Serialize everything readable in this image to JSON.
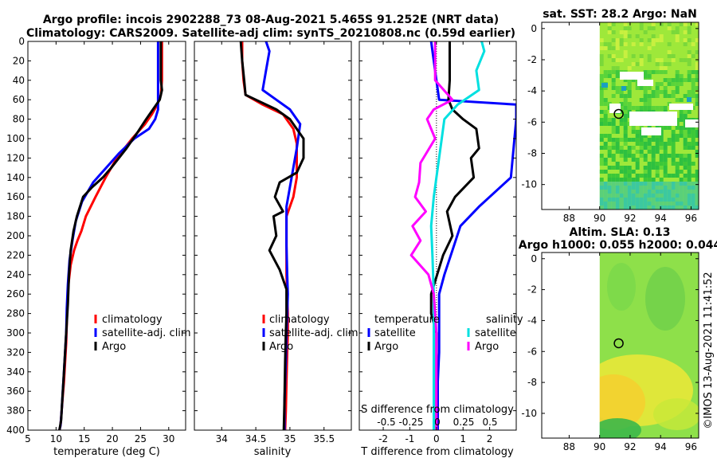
{
  "header": {
    "line1": "Argo profile: incois 2902288_73 08-Aug-2021 5.465S 91.252E (NRT data)",
    "line2": "Climatology: CARS2009. Satellite-adj clim: synTS_20210808.nc (0.59d earlier)"
  },
  "colors": {
    "climatology": "#ff0000",
    "satellite": "#0000ff",
    "argo": "#000000",
    "sat_salinity": "#00e0e0",
    "argo_salinity": "#ff00ff"
  },
  "footer": {
    "stamp": "©IMOS 13-Aug-2021 11:41:52"
  },
  "chart_data": [
    {
      "type": "line",
      "id": "temperature",
      "xlabel": "temperature (deg C)",
      "ylabel": "",
      "xlim": [
        5,
        33
      ],
      "ylim": [
        400,
        0
      ],
      "xticks": [
        5,
        10,
        15,
        20,
        25,
        30
      ],
      "yticks": [
        0,
        20,
        40,
        60,
        80,
        100,
        120,
        140,
        160,
        180,
        200,
        220,
        240,
        260,
        280,
        300,
        320,
        340,
        360,
        380,
        400
      ],
      "legend": [
        "climatology",
        "satellite-adj. clim",
        "Argo"
      ],
      "series": [
        {
          "name": "climatology",
          "color": "#ff0000",
          "x": [
            28.8,
            28.8,
            28.8,
            28.6,
            28,
            27,
            25.8,
            23.5,
            20.8,
            18.8,
            17,
            15.3,
            14.5,
            13.8,
            13.2,
            12.6,
            12.2,
            12.0,
            11.9,
            11.8,
            11.6,
            11.4,
            11.2,
            11.0,
            10.8,
            10.6
          ],
          "y": [
            0,
            20,
            40,
            55,
            65,
            75,
            85,
            100,
            120,
            140,
            160,
            180,
            195,
            205,
            215,
            230,
            250,
            270,
            290,
            310,
            330,
            350,
            365,
            380,
            395,
            400
          ]
        },
        {
          "name": "satellite-adj. clim",
          "color": "#0000ff",
          "x": [
            28.1,
            28.1,
            28.1,
            28.1,
            28.1,
            27.6,
            26.5,
            23.9,
            21.2,
            18.9,
            16.6,
            14.6,
            13.5,
            12.9,
            12.4,
            12.1,
            11.9,
            11.8,
            11.6,
            11.4,
            11.2,
            11.0,
            10.8,
            10.6
          ],
          "y": [
            0,
            20,
            40,
            60,
            70,
            80,
            90,
            100,
            115,
            130,
            145,
            165,
            185,
            205,
            225,
            250,
            275,
            300,
            320,
            340,
            360,
            380,
            395,
            400
          ]
        },
        {
          "name": "Argo",
          "color": "#000000",
          "x": [
            28.6,
            28.6,
            28.6,
            28.8,
            28.4,
            27.2,
            26,
            24.3,
            22.5,
            19.8,
            18.3,
            16.4,
            14.8,
            13.7,
            13.1,
            12.6,
            12.3,
            12.1,
            11.9,
            11.7,
            11.5,
            11.3,
            11.1,
            10.9,
            10.6
          ],
          "y": [
            0,
            20,
            40,
            50,
            60,
            70,
            80,
            95,
            110,
            130,
            140,
            150,
            160,
            180,
            195,
            215,
            240,
            270,
            290,
            310,
            330,
            350,
            370,
            390,
            400
          ]
        }
      ]
    },
    {
      "type": "line",
      "id": "salinity",
      "xlabel": "salinity",
      "xlim": [
        33.6,
        35.9
      ],
      "ylim": [
        400,
        0
      ],
      "xticks": [
        34,
        34.5,
        35,
        35.5
      ],
      "legend": [
        "climatology",
        "satellite-adj. clim",
        "Argo"
      ],
      "series": [
        {
          "name": "climatology",
          "color": "#ff0000",
          "x": [
            34.3,
            34.3,
            34.32,
            34.35,
            34.6,
            34.9,
            35.05,
            35.1,
            35.1,
            35.1,
            35.05,
            34.95,
            34.95,
            34.95,
            34.95,
            34.96,
            34.97,
            34.97,
            34.96,
            34.95,
            34.94,
            34.93
          ],
          "y": [
            0,
            20,
            40,
            55,
            65,
            75,
            90,
            105,
            120,
            140,
            160,
            180,
            200,
            220,
            240,
            260,
            280,
            300,
            320,
            350,
            380,
            400
          ]
        },
        {
          "name": "satellite-adj. clim",
          "color": "#0000ff",
          "x": [
            34.65,
            34.7,
            34.65,
            34.6,
            34.8,
            35.0,
            35.15,
            35.1,
            35.05,
            35.0,
            34.95,
            34.95,
            34.95,
            34.96,
            34.97,
            34.96,
            34.95,
            34.94,
            34.92,
            34.92
          ],
          "y": [
            0,
            10,
            30,
            50,
            60,
            70,
            85,
            110,
            130,
            150,
            170,
            190,
            210,
            240,
            260,
            280,
            300,
            330,
            370,
            400
          ]
        },
        {
          "name": "Argo",
          "color": "#000000",
          "x": [
            34.28,
            34.3,
            34.33,
            34.35,
            34.5,
            34.8,
            35.0,
            35.2,
            35.2,
            35.1,
            34.85,
            34.78,
            34.9,
            34.76,
            34.8,
            34.7,
            34.85,
            34.95,
            34.95,
            34.94,
            34.93,
            34.92,
            34.91
          ],
          "y": [
            0,
            20,
            40,
            55,
            60,
            70,
            80,
            100,
            120,
            135,
            145,
            160,
            175,
            180,
            200,
            215,
            235,
            255,
            280,
            300,
            330,
            370,
            400
          ]
        }
      ]
    },
    {
      "type": "line",
      "id": "difference",
      "xlabel": "T difference from climatology",
      "xlabel_top": "S difference from climatology",
      "xlim": [
        -2.9,
        3.0
      ],
      "ylim": [
        400,
        0
      ],
      "xticks": [
        -2,
        -1,
        0,
        1,
        2
      ],
      "s_ticks": [
        "-0.5",
        "-0.25",
        "0",
        "0.25",
        "0.5"
      ],
      "legend_temperature_title": "temperature",
      "legend_salinity_title": "salinity",
      "legend_t": [
        "satellite",
        "Argo"
      ],
      "legend_s": [
        "satellite",
        "Argo"
      ],
      "series": [
        {
          "name": "T satellite",
          "color": "#0000ff",
          "x": [
            -0.2,
            -0.1,
            0,
            0.1,
            3.0,
            3.0,
            2.8,
            1.6,
            0.9,
            0.6,
            0.3,
            0.1,
            0.1,
            0.1,
            0.05,
            0.05,
            0.05,
            0.05
          ],
          "y": [
            0,
            20,
            40,
            60,
            65,
            80,
            140,
            170,
            190,
            215,
            240,
            260,
            290,
            320,
            350,
            370,
            390,
            400
          ]
        },
        {
          "name": "T Argo",
          "color": "#000000",
          "x": [
            0.5,
            0.5,
            0.5,
            0.45,
            0.6,
            1.0,
            1.5,
            1.6,
            1.3,
            1.4,
            0.7,
            0.4,
            0.6,
            0.25,
            -0.2,
            -0.2,
            0.0,
            0.0,
            0.0,
            0.0
          ],
          "y": [
            0,
            20,
            40,
            60,
            70,
            80,
            90,
            110,
            120,
            140,
            160,
            175,
            200,
            220,
            260,
            280,
            300,
            340,
            380,
            400
          ]
        },
        {
          "name": "S satellite",
          "color": "#00e0e0",
          "x": [
            1.7,
            1.8,
            1.5,
            1.6,
            0.8,
            0.3,
            0.2,
            0.0,
            -0.1,
            -0.2,
            -0.15,
            -0.1,
            -0.1,
            -0.1,
            -0.1,
            -0.1
          ],
          "y": [
            0,
            10,
            30,
            50,
            65,
            80,
            100,
            140,
            160,
            190,
            220,
            260,
            290,
            320,
            360,
            400
          ]
        },
        {
          "name": "S Argo",
          "color": "#ff00ff",
          "x": [
            -0.05,
            -0.05,
            -0.05,
            0.6,
            -0.1,
            -0.35,
            -0.05,
            -0.6,
            -0.65,
            -0.8,
            -0.4,
            -0.9,
            -0.6,
            -0.95,
            -0.3,
            -0.1,
            0.0,
            0.0
          ],
          "y": [
            0,
            20,
            40,
            60,
            70,
            80,
            100,
            125,
            145,
            160,
            175,
            190,
            205,
            220,
            240,
            260,
            300,
            400
          ]
        }
      ]
    },
    {
      "type": "heatmap",
      "id": "sst-map",
      "title": "sat. SST: 28.2 Argo: NaN",
      "xlim": [
        86.2,
        96.5
      ],
      "ylim": [
        -11.6,
        0.4
      ],
      "xticks": [
        88,
        90,
        92,
        94,
        96
      ],
      "yticks": [
        0,
        -2,
        -4,
        -6,
        -8,
        -10
      ],
      "marker": {
        "lon": 91.25,
        "lat": -5.47
      }
    },
    {
      "type": "heatmap",
      "id": "sla-map",
      "title_line1": "Altim. SLA: 0.13",
      "title_line2": "Argo h1000: 0.055 h2000: 0.044",
      "xlim": [
        86.2,
        96.5
      ],
      "ylim": [
        -11.6,
        0.4
      ],
      "xticks": [
        88,
        90,
        92,
        94,
        96
      ],
      "yticks": [
        0,
        -2,
        -4,
        -6,
        -8,
        -10
      ],
      "marker": {
        "lon": 91.25,
        "lat": -5.47
      }
    }
  ]
}
